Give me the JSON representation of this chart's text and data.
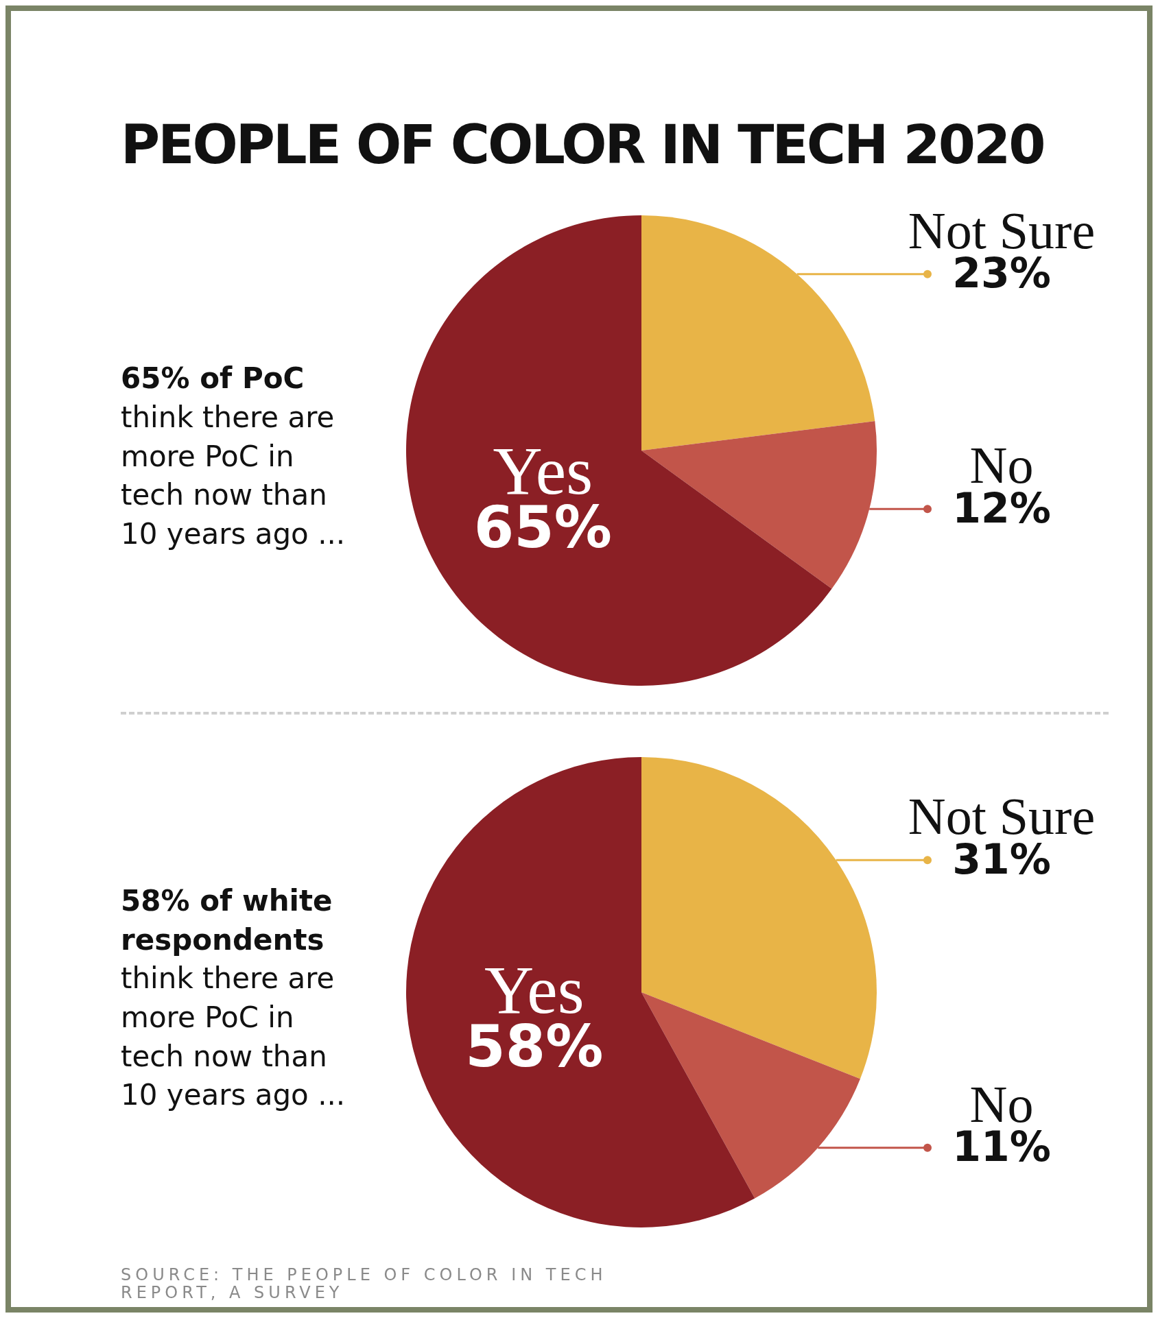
{
  "chart_data": [
    {
      "type": "pie",
      "title": "PEOPLE OF COLOR IN TECH 2020",
      "categories": [
        "Not Sure",
        "No",
        "Yes"
      ],
      "values": [
        23,
        12,
        65
      ],
      "value_labels": [
        "23%",
        "12%",
        "65%"
      ],
      "colors": [
        "#e8b447",
        "#c2554a",
        "#8b1f25"
      ],
      "legend": false,
      "annotations": [
        "65% of PoC",
        "think there are more PoC in tech now than 10 years ago ..."
      ]
    },
    {
      "type": "pie",
      "categories": [
        "Not Sure",
        "No",
        "Yes"
      ],
      "values": [
        31,
        11,
        58
      ],
      "value_labels": [
        "31%",
        "11%",
        "58%"
      ],
      "colors": [
        "#e8b447",
        "#c2554a",
        "#8b1f25"
      ],
      "legend": false,
      "annotations": [
        "58% of white respondents",
        "think there are more PoC in tech now than 10 years ago ...",
        "SOURCE: THE PEOPLE OF COLOR IN TECH REPORT, A SURVEY"
      ]
    }
  ]
}
